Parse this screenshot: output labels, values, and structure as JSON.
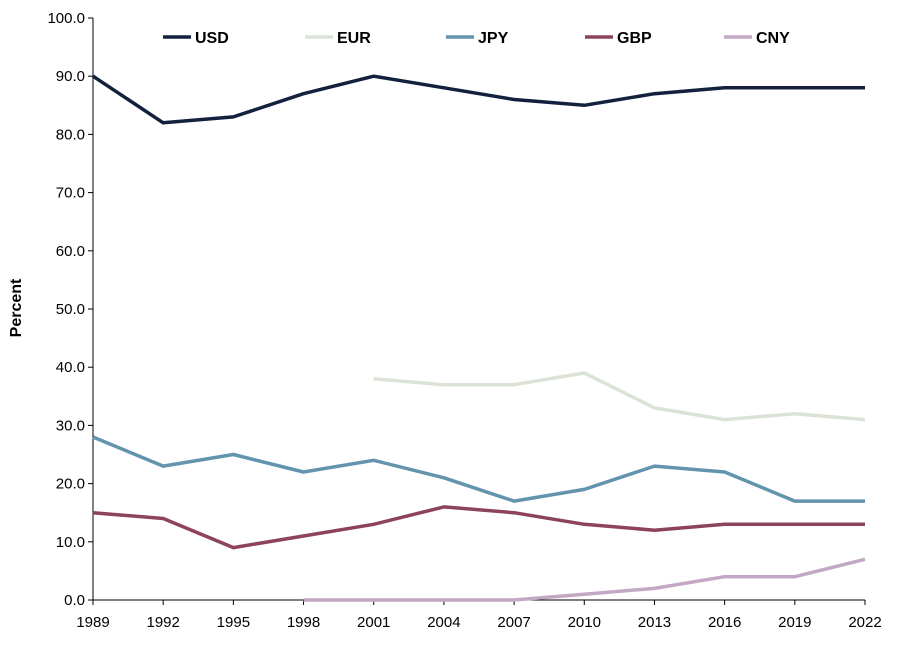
{
  "chart_data": {
    "type": "line",
    "ylabel": "Percent",
    "xlabel": "",
    "ylim": [
      0,
      100
    ],
    "y_ticks": [
      "0.0",
      "10.0",
      "20.0",
      "30.0",
      "40.0",
      "50.0",
      "60.0",
      "70.0",
      "80.0",
      "90.0",
      "100.0"
    ],
    "x": [
      "1989",
      "1992",
      "1995",
      "1998",
      "2001",
      "2004",
      "2007",
      "2010",
      "2013",
      "2016",
      "2019",
      "2022"
    ],
    "grid": false,
    "legend_position": "top",
    "series": [
      {
        "name": "USD",
        "color": "#13213f",
        "values": [
          90,
          82,
          83,
          87,
          90,
          88,
          86,
          85,
          87,
          88,
          88,
          88
        ]
      },
      {
        "name": "EUR",
        "color": "#dbe3d6",
        "values": [
          null,
          null,
          null,
          null,
          38,
          37,
          37,
          39,
          33,
          31,
          32,
          31
        ]
      },
      {
        "name": "JPY",
        "color": "#6394ad",
        "values": [
          28,
          23,
          25,
          22,
          24,
          21,
          17,
          19,
          23,
          22,
          17,
          17
        ]
      },
      {
        "name": "GBP",
        "color": "#8d4358",
        "values": [
          15,
          14,
          9,
          11,
          13,
          16,
          15,
          13,
          12,
          13,
          13,
          13
        ]
      },
      {
        "name": "CNY",
        "color": "#c3a8c6",
        "values": [
          null,
          null,
          null,
          0,
          0,
          0,
          0,
          1,
          2,
          4,
          4,
          7
        ]
      }
    ]
  }
}
